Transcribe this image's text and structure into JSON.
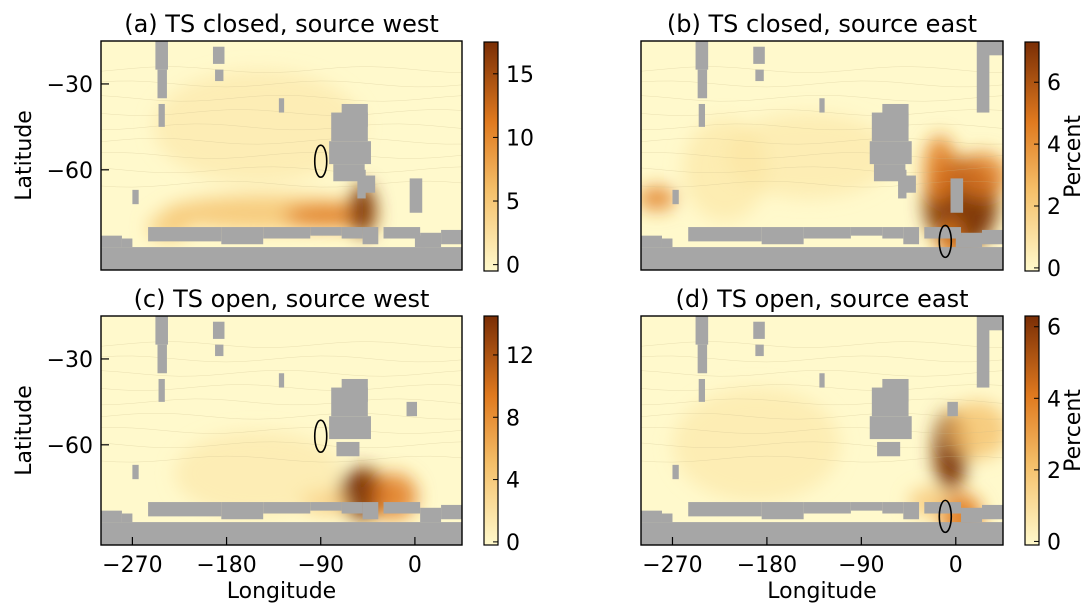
{
  "figure": {
    "shared_xlabel": "Longitude",
    "shared_ylabel": "Latitude",
    "colorbar_unit_label": "Percent",
    "colors": {
      "land": "#a6a6a6",
      "ocean_low": "#fff9cc",
      "ocean_mid": "#f5c06a",
      "ocean_high": "#e07a1f",
      "ocean_max": "#7a2e05",
      "release_marker": "#000000"
    }
  },
  "chart_data": [
    {
      "type": "heatmap",
      "panel": "a",
      "title": "(a) TS closed, source west",
      "xlabel": "",
      "ylabel": "Latitude",
      "xticks": [],
      "yticks": [
        -30,
        -60
      ],
      "xlim": [
        -300,
        45
      ],
      "ylim": [
        -95,
        -15
      ],
      "colorbar": {
        "ticks": [
          0,
          5,
          10,
          15
        ],
        "range": [
          -0.5,
          17.5
        ],
        "label": ""
      },
      "release_ellipse": {
        "lon": -90,
        "lat": -57
      },
      "gateway": "closed",
      "high_region": "Antarctic coastal band from -240 to -40 with maximum near -50, -75"
    },
    {
      "type": "heatmap",
      "panel": "b",
      "title": "(b) TS closed, source east",
      "xlabel": "",
      "ylabel": "",
      "xticks": [],
      "yticks": [],
      "xlim": [
        -300,
        45
      ],
      "ylim": [
        -95,
        -15
      ],
      "colorbar": {
        "ticks": [
          0,
          2,
          4,
          6
        ],
        "range": [
          -0.1,
          7.3
        ],
        "label": "Percent"
      },
      "release_ellipse": {
        "lon": -10,
        "lat": -85
      },
      "gateway": "closed",
      "high_region": "Southern Indian Ocean south of Australia (-25 to 45, -60 to -90) and Antarctic coast near -285"
    },
    {
      "type": "heatmap",
      "panel": "c",
      "title": "(c) TS open, source west",
      "xlabel": "",
      "ylabel": "Latitude",
      "xticks": [],
      "yticks": [
        -30,
        -60
      ],
      "xlim": [
        -300,
        45
      ],
      "ylim": [
        -95,
        -15
      ],
      "colorbar": {
        "ticks": [
          0,
          4,
          8,
          12
        ],
        "range": [
          -0.2,
          14.5
        ],
        "label": ""
      },
      "release_ellipse": {
        "lon": -90,
        "lat": -57
      },
      "gateway": "open",
      "high_region": "Antarctic margin from -100 to -20, maximum near -50, -75"
    },
    {
      "type": "heatmap",
      "panel": "d",
      "title": "(d) TS open, source east",
      "xlabel": "Longitude",
      "ylabel": "",
      "xticks": [
        -270,
        -180,
        -90,
        0
      ],
      "yticks": [],
      "xlim": [
        -300,
        45
      ],
      "ylim": [
        -95,
        -15
      ],
      "colorbar": {
        "ticks": [
          0,
          2,
          4,
          6
        ],
        "range": [
          -0.1,
          6.3
        ],
        "label": "Percent"
      },
      "release_ellipse": {
        "lon": -10,
        "lat": -85
      },
      "gateway": "open",
      "high_region": "East of Australia and south of it (-20 to 45, -45 to -95)"
    }
  ],
  "shared_bottom_axis": {
    "panel_c_xticks": [
      -270,
      -180,
      -90,
      0
    ],
    "xlabel": "Longitude"
  }
}
